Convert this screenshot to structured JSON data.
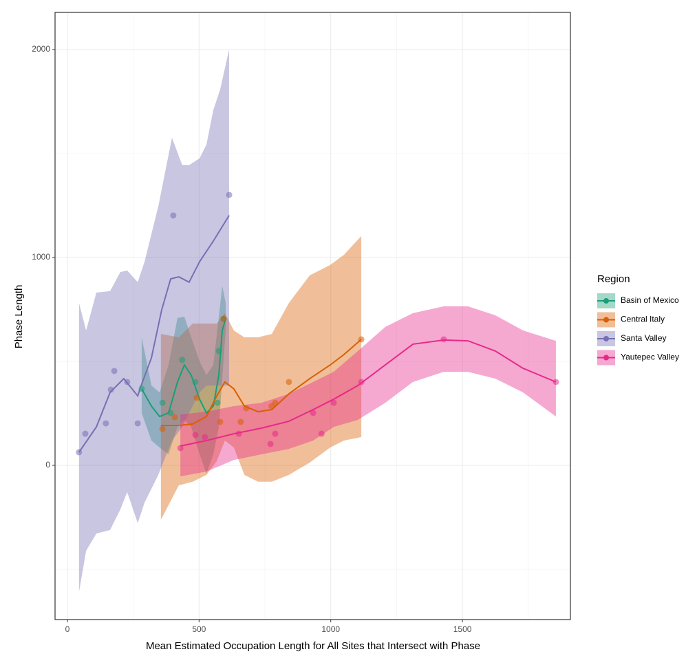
{
  "chart_data": {
    "type": "scatter-smooth",
    "x_label": "Mean Estimated Occupation Length for All Sites that Intersect with Phase",
    "y_label": "Phase Length",
    "legend_title": "Region",
    "legend_position": "right",
    "grid": true,
    "xlim": [
      -47,
      1910
    ],
    "ylim": [
      -742,
      2179
    ],
    "xticks": [
      0,
      500,
      1000,
      1500
    ],
    "yticks": [
      0,
      1000,
      2000
    ],
    "xminor": [
      250,
      750,
      1250,
      1750
    ],
    "yminor": [
      -500,
      500,
      1500
    ],
    "series": [
      {
        "name": "Basin of Mexico",
        "color": "#1b9e77",
        "points": {
          "x": [
            282,
            361,
            392,
            436,
            486,
            570,
            575,
            593
          ],
          "y": [
            368,
            301,
            252,
            507,
            401,
            301,
            550,
            705
          ]
        },
        "line": {
          "x": [
            282,
            319,
            350,
            384,
            418,
            444,
            470,
            502,
            528,
            554,
            575,
            588,
            601
          ],
          "y": [
            368,
            285,
            235,
            252,
            401,
            483,
            434,
            318,
            252,
            285,
            434,
            649,
            705
          ]
        },
        "band": {
          "x": [
            282,
            319,
            350,
            384,
            418,
            444,
            470,
            502,
            528,
            554,
            575,
            588,
            601
          ],
          "lower": [
            252,
            119,
            86,
            53,
            185,
            219,
            185,
            53,
            -40,
            53,
            185,
            417,
            649
          ],
          "upper": [
            616,
            384,
            351,
            483,
            709,
            715,
            616,
            500,
            434,
            483,
            715,
            864,
            781
          ]
        }
      },
      {
        "name": "Central Italy",
        "color": "#d95f02",
        "points": {
          "x": [
            361,
            408,
            491,
            580,
            593,
            658,
            679,
            775,
            789,
            841,
            1116
          ],
          "y": [
            175,
            232,
            325,
            209,
            705,
            209,
            275,
            285,
            301,
            401,
            606
          ]
        },
        "line": {
          "x": [
            355,
            423,
            476,
            528,
            567,
            598,
            632,
            672,
            724,
            776,
            841,
            920,
            998,
            1050,
            1116
          ],
          "y": [
            192,
            192,
            199,
            235,
            334,
            401,
            368,
            285,
            258,
            268,
            344,
            417,
            483,
            533,
            606
          ]
        },
        "band": {
          "x": [
            355,
            423,
            476,
            528,
            567,
            598,
            632,
            672,
            724,
            776,
            841,
            920,
            998,
            1050,
            1116
          ],
          "lower": [
            -262,
            -96,
            -79,
            -46,
            20,
            119,
            86,
            -46,
            -79,
            -79,
            -46,
            13,
            86,
            119,
            136
          ],
          "upper": [
            632,
            616,
            682,
            682,
            682,
            732,
            649,
            616,
            616,
            632,
            781,
            914,
            964,
            1013,
            1103
          ]
        }
      },
      {
        "name": "Santa Valley",
        "color": "#7570b3",
        "points": {
          "x": [
            44,
            68,
            146,
            165,
            178,
            227,
            267,
            402,
            614
          ],
          "y": [
            63,
            152,
            202,
            364,
            454,
            401,
            202,
            1202,
            1301
          ]
        },
        "line": {
          "x": [
            44,
            110,
            162,
            214,
            267,
            280,
            319,
            358,
            392,
            423,
            462,
            502,
            554,
            614
          ],
          "y": [
            63,
            185,
            351,
            417,
            334,
            384,
            517,
            748,
            897,
            907,
            881,
            980,
            1079,
            1202
          ]
        },
        "band": {
          "x": [
            44,
            71,
            110,
            162,
            201,
            227,
            267,
            293,
            345,
            397,
            436,
            462,
            502,
            528,
            554,
            580,
            614
          ],
          "lower": [
            -609,
            -411,
            -328,
            -311,
            -212,
            -129,
            -278,
            -179,
            -46,
            119,
            185,
            252,
            351,
            384,
            384,
            384,
            384
          ],
          "upper": [
            781,
            649,
            831,
            838,
            930,
            937,
            881,
            980,
            1245,
            1576,
            1444,
            1444,
            1477,
            1543,
            1709,
            1808,
            2000
          ]
        }
      },
      {
        "name": "Yautepec Valley",
        "color": "#e7298a",
        "points": {
          "x": [
            429,
            486,
            522,
            651,
            771,
            789,
            933,
            965,
            1011,
            1116,
            1429,
            1855
          ],
          "y": [
            83,
            146,
            136,
            152,
            103,
            152,
            252,
            152,
            301,
            401,
            606,
            401
          ]
        },
        "line": {
          "x": [
            429,
            528,
            632,
            737,
            841,
            933,
            1011,
            1103,
            1207,
            1312,
            1429,
            1521,
            1625,
            1730,
            1855
          ],
          "y": [
            93,
            119,
            152,
            179,
            212,
            268,
            318,
            384,
            483,
            583,
            603,
            599,
            550,
            467,
            401
          ]
        },
        "band": {
          "x": [
            429,
            528,
            632,
            737,
            841,
            933,
            1011,
            1103,
            1207,
            1312,
            1429,
            1521,
            1625,
            1730,
            1855
          ],
          "lower": [
            -53,
            -30,
            26,
            53,
            79,
            119,
            185,
            219,
            301,
            401,
            450,
            450,
            417,
            351,
            235
          ],
          "upper": [
            245,
            258,
            285,
            301,
            344,
            401,
            450,
            550,
            666,
            732,
            765,
            765,
            722,
            649,
            599
          ]
        }
      }
    ]
  }
}
